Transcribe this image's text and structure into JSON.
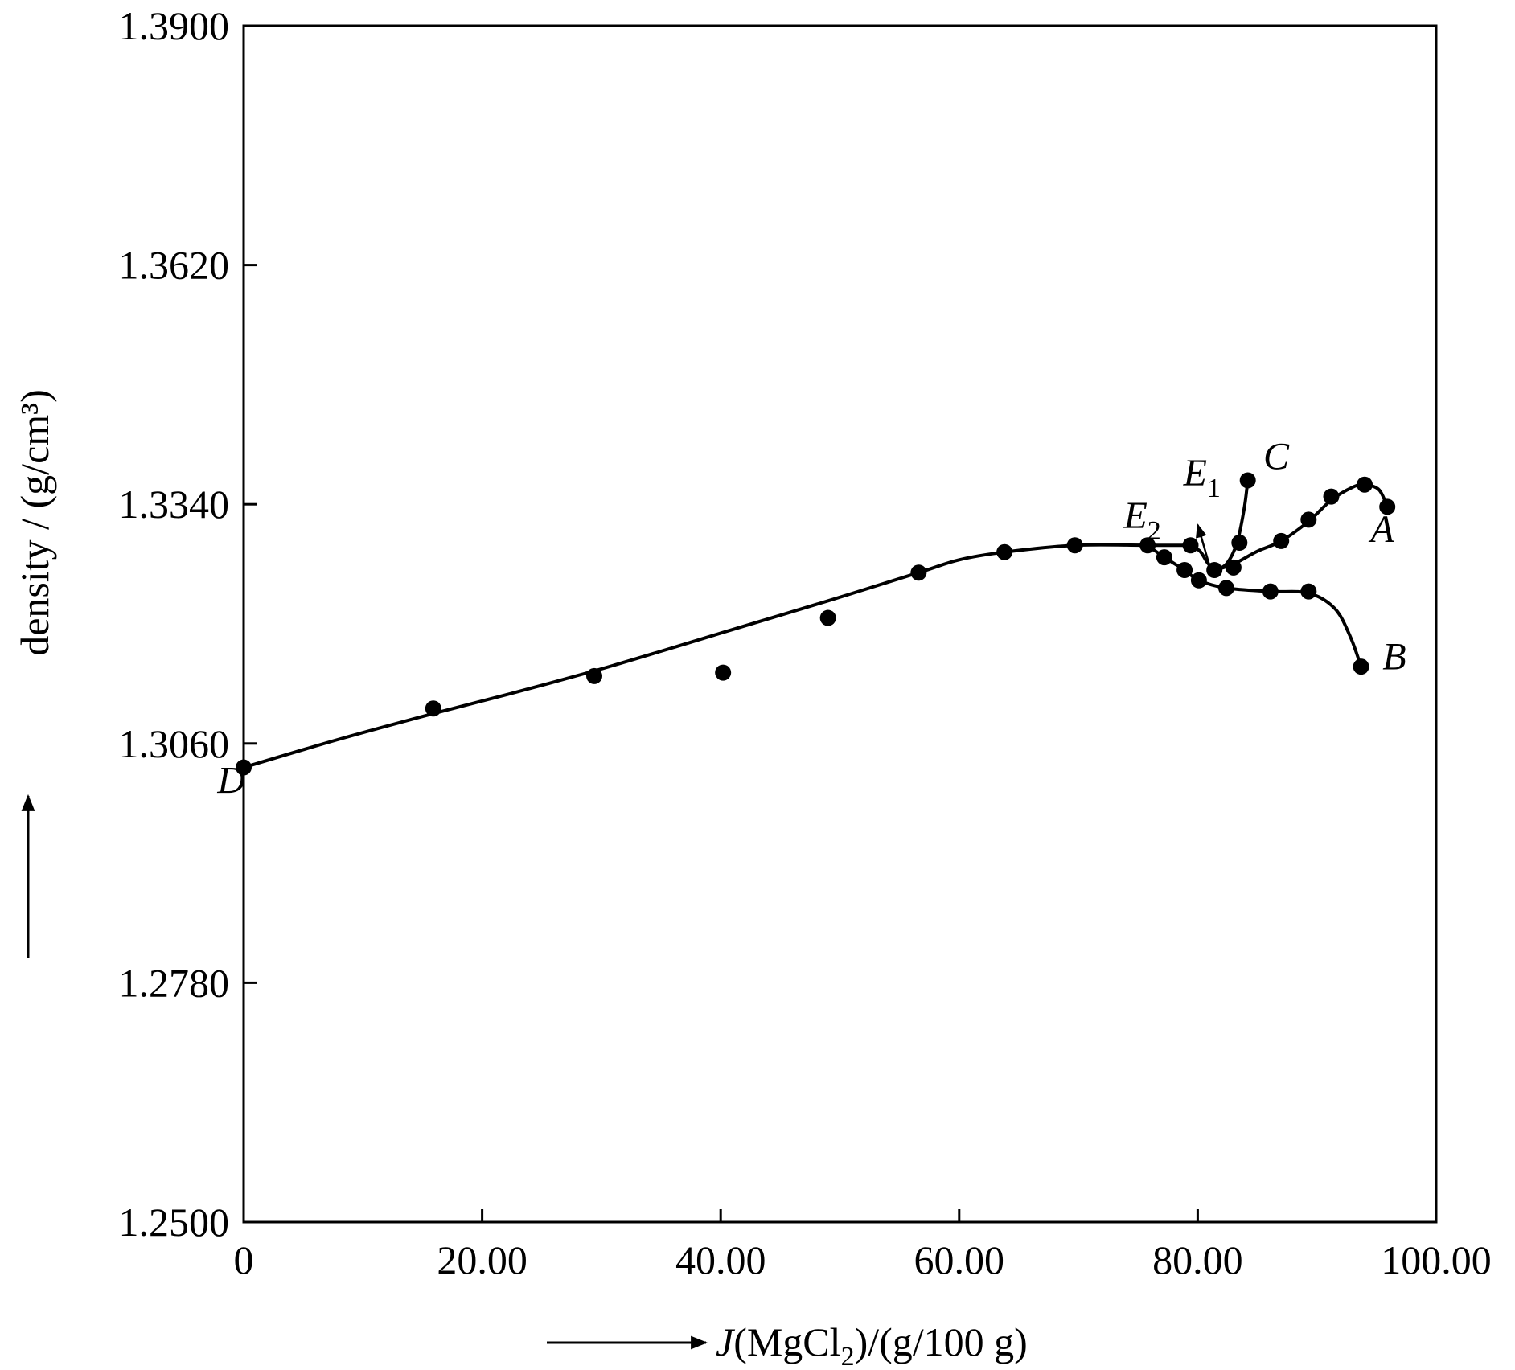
{
  "chart_data": {
    "type": "scatter",
    "xlabel": "J(MgCl2)/(g/100 g)",
    "xlabel_parts": {
      "var": "J",
      "open": "(MgCl",
      "sub": "2",
      "close": ")/(g/100 g)"
    },
    "ylabel": "density / (g/cm³)",
    "xlim": [
      0,
      100
    ],
    "ylim": [
      1.25,
      1.39
    ],
    "x_ticks": [
      0,
      20,
      40,
      60,
      80,
      100
    ],
    "x_tick_labels": [
      "0",
      "20.00",
      "40.00",
      "60.00",
      "80.00",
      "100.00"
    ],
    "y_ticks": [
      1.25,
      1.278,
      1.306,
      1.334,
      1.362,
      1.39
    ],
    "y_tick_labels": [
      "1.2500",
      "1.2780",
      "1.3060",
      "1.3340",
      "1.3620",
      "1.3900"
    ],
    "grid": false,
    "legend": "none",
    "points": [
      {
        "x": 0.0,
        "y": 1.3032
      },
      {
        "x": 15.9,
        "y": 1.3101
      },
      {
        "x": 29.4,
        "y": 1.3139
      },
      {
        "x": 40.2,
        "y": 1.3143
      },
      {
        "x": 49.0,
        "y": 1.3207
      },
      {
        "x": 56.6,
        "y": 1.326
      },
      {
        "x": 63.8,
        "y": 1.3284
      },
      {
        "x": 69.7,
        "y": 1.3292
      },
      {
        "x": 75.8,
        "y": 1.3292
      },
      {
        "x": 79.4,
        "y": 1.3292
      },
      {
        "x": 77.2,
        "y": 1.3278
      },
      {
        "x": 78.9,
        "y": 1.3263
      },
      {
        "x": 80.1,
        "y": 1.3251
      },
      {
        "x": 82.4,
        "y": 1.3242
      },
      {
        "x": 86.1,
        "y": 1.3238
      },
      {
        "x": 89.3,
        "y": 1.3238
      },
      {
        "x": 93.7,
        "y": 1.315
      },
      {
        "x": 81.4,
        "y": 1.3263
      },
      {
        "x": 83.0,
        "y": 1.3266
      },
      {
        "x": 83.5,
        "y": 1.3295
      },
      {
        "x": 84.2,
        "y": 1.3368
      },
      {
        "x": 87.0,
        "y": 1.3297
      },
      {
        "x": 89.3,
        "y": 1.3322
      },
      {
        "x": 91.2,
        "y": 1.3349
      },
      {
        "x": 94.0,
        "y": 1.3363
      },
      {
        "x": 95.9,
        "y": 1.3337
      }
    ],
    "curves": [
      {
        "points": [
          [
            0,
            1.3032
          ],
          [
            8,
            1.3065
          ],
          [
            15.9,
            1.3095
          ],
          [
            22,
            1.3117
          ],
          [
            29.4,
            1.3145
          ],
          [
            35,
            1.3168
          ],
          [
            40.2,
            1.319
          ],
          [
            49,
            1.3227
          ],
          [
            56.6,
            1.326
          ],
          [
            60,
            1.3275
          ],
          [
            63.8,
            1.3284
          ],
          [
            69.7,
            1.3292
          ],
          [
            75.8,
            1.3292
          ],
          [
            79.4,
            1.3292
          ]
        ]
      },
      {
        "points": [
          [
            79.4,
            1.3292
          ],
          [
            80.2,
            1.3285
          ],
          [
            80.8,
            1.3272
          ],
          [
            81.4,
            1.3263
          ]
        ]
      },
      {
        "points": [
          [
            75.8,
            1.3292
          ],
          [
            77.2,
            1.3278
          ],
          [
            78.9,
            1.3263
          ],
          [
            80.1,
            1.3251
          ],
          [
            82.4,
            1.3242
          ],
          [
            86.1,
            1.3238
          ],
          [
            89.3,
            1.3236
          ],
          [
            91.5,
            1.3218
          ],
          [
            92.8,
            1.3185
          ],
          [
            93.7,
            1.315
          ]
        ]
      },
      {
        "points": [
          [
            81.4,
            1.3263
          ],
          [
            82.4,
            1.327
          ],
          [
            83.3,
            1.3295
          ],
          [
            83.9,
            1.3335
          ],
          [
            84.2,
            1.3368
          ]
        ]
      },
      {
        "points": [
          [
            81.4,
            1.3263
          ],
          [
            83,
            1.327
          ],
          [
            85,
            1.3285
          ],
          [
            87,
            1.3297
          ],
          [
            89.3,
            1.332
          ],
          [
            91.2,
            1.3345
          ],
          [
            93,
            1.336
          ],
          [
            94,
            1.3363
          ],
          [
            95.2,
            1.3357
          ],
          [
            95.9,
            1.3337
          ]
        ]
      }
    ],
    "annotations": [
      {
        "text": "A",
        "x": 94.5,
        "y": 1.3296
      },
      {
        "text": "B",
        "x": 95.5,
        "y": 1.3147
      },
      {
        "text": "C",
        "x": 85.5,
        "y": 1.3381
      },
      {
        "text": "D",
        "x": -2.2,
        "y": 1.3002
      },
      {
        "text": "E",
        "sub": "1",
        "x": 78.8,
        "y": 1.3362
      },
      {
        "text": "E",
        "sub": "2",
        "x": 73.8,
        "y": 1.3312
      }
    ],
    "e1_arrow": {
      "from": [
        81.1,
        1.3263
      ],
      "to": [
        80.0,
        1.3316
      ]
    }
  }
}
